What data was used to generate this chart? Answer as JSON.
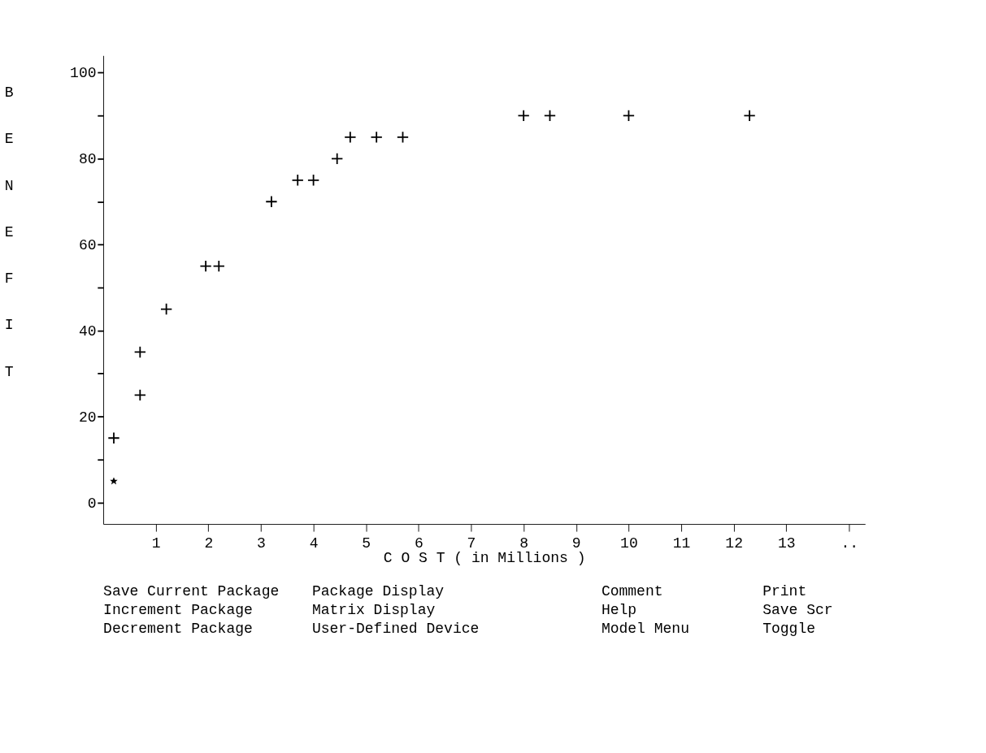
{
  "chart_data": {
    "type": "scatter",
    "xlabel": "C O S T ( in Millions )",
    "ylabel": "BENEFIT",
    "xlim": [
      0,
      14.5
    ],
    "xticks": [
      1,
      2,
      3,
      4,
      5,
      6,
      7,
      8,
      9,
      10,
      11,
      12,
      13,
      {
        "value": 14.2,
        "label": ".."
      }
    ],
    "ylim": [
      -5,
      104
    ],
    "yticks": [
      0,
      {
        "value": 10,
        "label": null
      },
      20,
      {
        "value": 30,
        "label": null
      },
      40,
      {
        "value": 50,
        "label": null
      },
      60,
      {
        "value": 70,
        "label": null
      },
      80,
      {
        "value": 90,
        "label": null
      },
      100
    ],
    "grid": false,
    "series": [
      {
        "color": "#000000",
        "marker": "star",
        "x": [
          0.2
        ],
        "values": [
          5
        ]
      },
      {
        "color": "#000000",
        "marker": "cross",
        "x": [
          0.2,
          0.7,
          0.7,
          1.2,
          1.95,
          2.2,
          3.2,
          3.7,
          4.0,
          4.45,
          4.7,
          5.2,
          5.7,
          8.0,
          8.5,
          10.0,
          12.3
        ],
        "values": [
          15,
          25,
          35,
          45,
          55,
          55,
          70,
          75,
          75,
          80,
          85,
          85,
          85,
          90,
          90,
          90,
          90
        ]
      }
    ],
    "annotations": [
      "Save Current Package",
      "Increment Package",
      "Decrement Package",
      "Package Display",
      "Matrix Display",
      "User-Defined Device",
      "Comment",
      "Help",
      "Model Menu",
      "Print",
      "Save Scr",
      "Toggle"
    ]
  }
}
